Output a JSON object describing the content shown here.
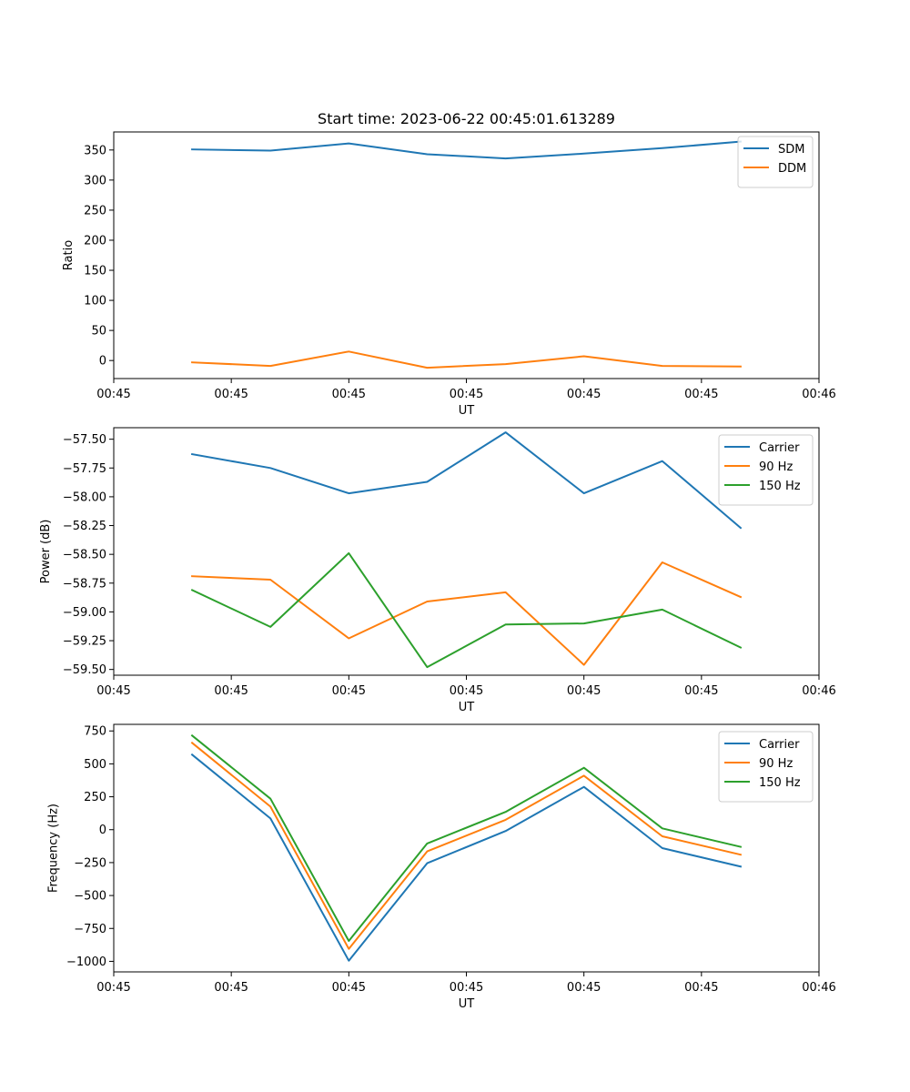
{
  "figure_title": "Start time: 2023-06-22 00:45:01.613289",
  "chart_data": [
    {
      "type": "line",
      "title": "Start time: 2023-06-22 00:45:01.613289",
      "xlabel": "UT",
      "ylabel": "Ratio",
      "x": [
        1,
        2,
        3,
        4,
        5,
        6,
        7,
        8
      ],
      "xlim": [
        0,
        9
      ],
      "x_ticks": [
        0,
        1.5,
        3,
        4.5,
        6,
        7.5,
        9
      ],
      "x_tick_labels": [
        "00:45",
        "00:45",
        "00:45",
        "00:45",
        "00:45",
        "00:45",
        "00:46"
      ],
      "ylim": [
        -30,
        380
      ],
      "y_ticks": [
        0,
        50,
        100,
        150,
        200,
        250,
        300,
        350
      ],
      "y_tick_labels": [
        "0",
        "50",
        "100",
        "150",
        "200",
        "250",
        "300",
        "350"
      ],
      "legend_position": "top-right",
      "series": [
        {
          "name": "SDM",
          "color": "#1f77b4",
          "values": [
            351,
            349,
            361,
            343,
            336,
            344,
            353,
            364
          ]
        },
        {
          "name": "DDM",
          "color": "#ff7f0e",
          "values": [
            -3,
            -9,
            15,
            -12,
            -6,
            7,
            -9,
            -10
          ]
        }
      ]
    },
    {
      "type": "line",
      "xlabel": "UT",
      "ylabel": "Power (dB)",
      "x": [
        1,
        2,
        3,
        4,
        5,
        6,
        7,
        8
      ],
      "xlim": [
        0,
        9
      ],
      "x_ticks": [
        0,
        1.5,
        3,
        4.5,
        6,
        7.5,
        9
      ],
      "x_tick_labels": [
        "00:45",
        "00:45",
        "00:45",
        "00:45",
        "00:45",
        "00:45",
        "00:46"
      ],
      "ylim": [
        -59.55,
        -57.4
      ],
      "y_ticks": [
        -59.5,
        -59.25,
        -59.0,
        -58.75,
        -58.5,
        -58.25,
        -58.0,
        -57.75,
        -57.5
      ],
      "y_tick_labels": [
        "−59.50",
        "−59.25",
        "−59.00",
        "−58.75",
        "−58.50",
        "−58.25",
        "−58.00",
        "−57.75",
        "−57.50"
      ],
      "legend_position": "top-right",
      "series": [
        {
          "name": "Carrier",
          "color": "#1f77b4",
          "values": [
            -57.63,
            -57.75,
            -57.97,
            -57.87,
            -57.44,
            -57.97,
            -57.69,
            -58.27
          ]
        },
        {
          "name": "90 Hz",
          "color": "#ff7f0e",
          "values": [
            -58.69,
            -58.72,
            -59.23,
            -58.91,
            -58.83,
            -59.46,
            -58.57,
            -58.87
          ]
        },
        {
          "name": "150 Hz",
          "color": "#2ca02c",
          "values": [
            -58.81,
            -59.13,
            -58.49,
            -59.48,
            -59.11,
            -59.1,
            -58.98,
            -59.31
          ]
        }
      ]
    },
    {
      "type": "line",
      "xlabel": "UT",
      "ylabel": "Frequency (Hz)",
      "x": [
        1,
        2,
        3,
        4,
        5,
        6,
        7,
        8
      ],
      "xlim": [
        0,
        9
      ],
      "x_ticks": [
        0,
        1.5,
        3,
        4.5,
        6,
        7.5,
        9
      ],
      "x_tick_labels": [
        "00:45",
        "00:45",
        "00:45",
        "00:45",
        "00:45",
        "00:45",
        "00:46"
      ],
      "ylim": [
        -1080,
        800
      ],
      "y_ticks": [
        -1000,
        -750,
        -500,
        -250,
        0,
        250,
        500,
        750
      ],
      "y_tick_labels": [
        "−1000",
        "−750",
        "−500",
        "−250",
        "0",
        "250",
        "500",
        "750"
      ],
      "legend_position": "top-right",
      "series": [
        {
          "name": "Carrier",
          "color": "#1f77b4",
          "values": [
            570,
            85,
            -995,
            -255,
            -10,
            325,
            -140,
            -280
          ]
        },
        {
          "name": "90 Hz",
          "color": "#ff7f0e",
          "values": [
            660,
            175,
            -905,
            -165,
            75,
            410,
            -50,
            -190
          ]
        },
        {
          "name": "150 Hz",
          "color": "#2ca02c",
          "values": [
            715,
            235,
            -845,
            -105,
            135,
            470,
            10,
            -130
          ]
        }
      ]
    }
  ]
}
